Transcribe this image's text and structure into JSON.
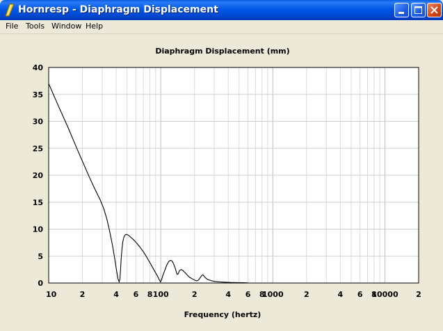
{
  "window": {
    "title": "Hornresp - Diaphragm Displacement"
  },
  "menu": [
    "File",
    "Tools",
    "Window",
    "Help"
  ],
  "chart_data": {
    "type": "line",
    "title": "Diaphragm Displacement (mm)",
    "xlabel": "Frequency (hertz)",
    "ylabel": "",
    "x_scale": "log",
    "xlim": [
      10,
      20000
    ],
    "ylim": [
      0,
      40
    ],
    "grid": true,
    "x_tick_labels": [
      {
        "value": 10,
        "label": "10"
      },
      {
        "value": 20,
        "label": "2"
      },
      {
        "value": 40,
        "label": "4"
      },
      {
        "value": 60,
        "label": "6"
      },
      {
        "value": 80,
        "label": "8"
      },
      {
        "value": 100,
        "label": "100"
      },
      {
        "value": 200,
        "label": "2"
      },
      {
        "value": 400,
        "label": "4"
      },
      {
        "value": 600,
        "label": "6"
      },
      {
        "value": 800,
        "label": "8"
      },
      {
        "value": 1000,
        "label": "1000"
      },
      {
        "value": 2000,
        "label": "2"
      },
      {
        "value": 4000,
        "label": "4"
      },
      {
        "value": 6000,
        "label": "6"
      },
      {
        "value": 8000,
        "label": "8"
      },
      {
        "value": 10000,
        "label": "10000"
      },
      {
        "value": 20000,
        "label": "2"
      }
    ],
    "y_ticks": [
      0,
      5,
      10,
      15,
      20,
      25,
      30,
      35,
      40
    ],
    "series": [
      {
        "x": [
          10,
          12,
          15,
          18,
          20,
          23,
          26,
          29,
          31,
          33,
          35,
          37,
          38.5,
          40,
          41.5,
          42.5,
          43.2,
          43.8,
          44.4,
          45.1,
          45.8,
          47,
          48.5,
          50,
          52,
          54,
          56,
          58,
          61,
          65,
          70,
          75,
          80,
          85,
          90,
          95,
          97,
          99.5,
          101.5,
          104,
          108,
          113,
          118,
          122,
          126,
          130,
          134,
          137,
          140,
          143,
          147,
          152,
          158,
          165,
          172,
          180,
          190,
          200,
          207,
          214,
          220,
          226,
          232,
          236,
          240,
          245,
          250,
          260,
          280,
          300,
          330,
          370,
          420,
          480,
          550,
          600
        ],
        "y": [
          37,
          33.2,
          28.7,
          24.8,
          22.6,
          19.7,
          17.3,
          15.3,
          13.8,
          11.9,
          9.6,
          7.1,
          5.0,
          2.8,
          0.8,
          0.2,
          0.7,
          2.6,
          4.6,
          6.3,
          7.6,
          8.6,
          9.0,
          9.0,
          8.8,
          8.5,
          8.2,
          7.9,
          7.4,
          6.7,
          5.8,
          4.8,
          3.8,
          2.8,
          1.9,
          1.0,
          0.6,
          0.2,
          0.6,
          1.3,
          2.2,
          3.3,
          4.0,
          4.2,
          4.1,
          3.6,
          2.9,
          2.2,
          1.6,
          1.7,
          2.3,
          2.5,
          2.3,
          1.9,
          1.5,
          1.1,
          0.8,
          0.55,
          0.4,
          0.45,
          0.7,
          1.05,
          1.4,
          1.5,
          1.45,
          1.2,
          1.0,
          0.7,
          0.45,
          0.3,
          0.22,
          0.15,
          0.1,
          0.08,
          0.05,
          0.03
        ]
      }
    ]
  }
}
